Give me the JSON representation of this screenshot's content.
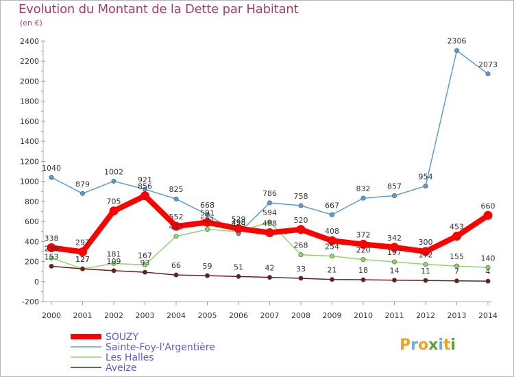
{
  "header": {
    "title": "Evolution du Montant de la Dette par Habitant",
    "subtitle": "(en €)"
  },
  "brand": {
    "text": "Proxiti",
    "colors": [
      "#f4a223",
      "#6aaee0",
      "#5a9e3a"
    ]
  },
  "chart_data": {
    "type": "line",
    "categories": [
      "2000",
      "2001",
      "2002",
      "2003",
      "2004",
      "2005",
      "2006",
      "2007",
      "2008",
      "2009",
      "2010",
      "2011",
      "2012",
      "2013",
      "2014"
    ],
    "ylim": [
      -200,
      2400
    ],
    "yticks": [
      -200,
      0,
      200,
      400,
      600,
      800,
      1000,
      1200,
      1400,
      1600,
      1800,
      2000,
      2200,
      2400
    ],
    "grid": false,
    "legend_position": "bottom-left",
    "series": [
      {
        "name": "Sainte-Foy-l'Argentière",
        "color": "#5b9bd5",
        "values": [
          1040,
          879,
          1002,
          921,
          825,
          668,
          479,
          786,
          758,
          667,
          832,
          857,
          954,
          2306,
          2073
        ]
      },
      {
        "name": "Les Halles",
        "color": "#8fd66a",
        "values": [
          236,
          127,
          181,
          167,
          452,
          521,
          498,
          594,
          268,
          254,
          220,
          197,
          172,
          155,
          140
        ]
      },
      {
        "name": "Aveize",
        "color": "#6b1d1d",
        "values": [
          153,
          127,
          109,
          93,
          66,
          59,
          51,
          42,
          33,
          21,
          18,
          14,
          11,
          7,
          4
        ]
      },
      {
        "name": "SOUZY",
        "color": "#ff0000",
        "values": [
          338,
          297,
          705,
          856,
          552,
          591,
          529,
          488,
          520,
          408,
          372,
          342,
          300,
          453,
          660
        ]
      }
    ]
  }
}
